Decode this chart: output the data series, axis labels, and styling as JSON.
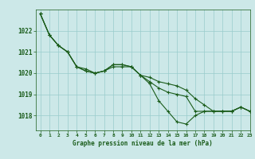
{
  "xlabel": "Graphe pression niveau de la mer (hPa)",
  "background_color": "#cce8e8",
  "grid_color": "#99cccc",
  "line_color": "#1a5c1a",
  "marker": "+",
  "markersize": 3,
  "linewidth": 0.8,
  "ylim": [
    1017.3,
    1023.0
  ],
  "xlim": [
    -0.5,
    23
  ],
  "yticks": [
    1018,
    1019,
    1020,
    1021,
    1022
  ],
  "xticks": [
    0,
    1,
    2,
    3,
    4,
    5,
    6,
    7,
    8,
    9,
    10,
    11,
    12,
    13,
    14,
    15,
    16,
    17,
    18,
    19,
    20,
    21,
    22,
    23
  ],
  "series": [
    [
      1022.8,
      1021.8,
      1021.3,
      1021.0,
      1020.3,
      1020.1,
      1020.0,
      1020.1,
      1020.3,
      1020.3,
      1020.3,
      1019.9,
      1019.8,
      1019.6,
      1019.5,
      1019.4,
      1019.2,
      1018.8,
      1018.5,
      1018.2,
      1018.2,
      1018.2,
      1018.4,
      1018.2
    ],
    [
      1022.8,
      1021.8,
      1021.3,
      1021.0,
      1020.3,
      1020.1,
      1020.0,
      1020.1,
      1020.4,
      1020.4,
      1020.3,
      1019.9,
      1019.5,
      1018.7,
      1018.2,
      1017.7,
      1017.6,
      1018.0,
      1018.2,
      1018.2,
      1018.2,
      1018.2,
      1018.4,
      1018.2
    ],
    [
      1022.8,
      1021.8,
      1021.3,
      1021.0,
      1020.3,
      1020.2,
      1020.0,
      1020.1,
      1020.4,
      1020.4,
      1020.3,
      1019.9,
      1019.6,
      1019.3,
      1019.1,
      1019.0,
      1018.9,
      1018.2,
      1018.2,
      1018.2,
      1018.2,
      1018.2,
      1018.4,
      1018.2
    ]
  ]
}
